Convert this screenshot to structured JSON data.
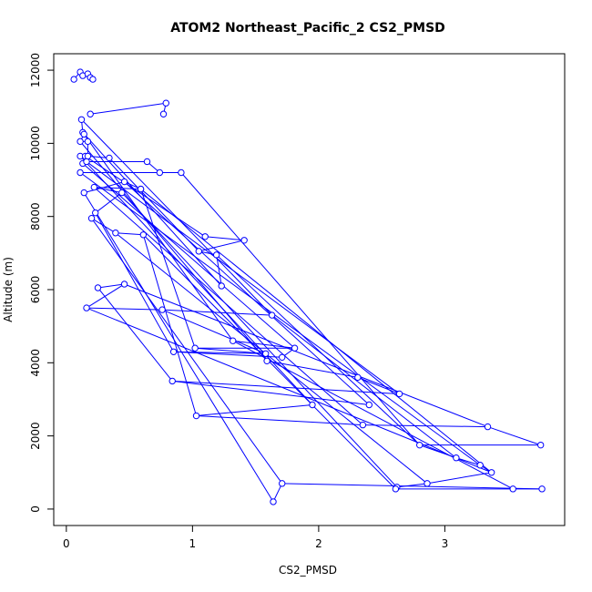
{
  "chart_data": {
    "type": "scatter",
    "title": "ATOM2 Northeast_Pacific_2 CS2_PMSD",
    "xlabel": "CS2_PMSD",
    "ylabel": "Altitude (m)",
    "xlim": [
      -0.1,
      3.95
    ],
    "ylim": [
      -450,
      12450
    ],
    "xticks": [
      0,
      1,
      2,
      3
    ],
    "yticks": [
      0,
      2000,
      4000,
      6000,
      8000,
      10000,
      12000
    ],
    "grid": false,
    "legend": "none",
    "series_color": "#0000ff",
    "mode": "lines+markers",
    "points": [
      [
        0.06,
        11750
      ],
      [
        0.11,
        11950
      ],
      [
        0.13,
        11850
      ],
      [
        0.17,
        11900
      ],
      [
        0.19,
        11800
      ],
      [
        0.21,
        11750
      ],
      [
        0.19,
        10800
      ],
      [
        0.79,
        11100
      ],
      [
        0.77,
        10800
      ],
      [
        0.12,
        10650
      ],
      [
        0.13,
        10300
      ],
      [
        0.14,
        10250
      ],
      [
        0.11,
        10050
      ],
      [
        0.17,
        10050
      ],
      [
        0.11,
        9650
      ],
      [
        0.15,
        9650
      ],
      [
        0.17,
        9650
      ],
      [
        0.34,
        9600
      ],
      [
        0.13,
        9450
      ],
      [
        0.16,
        9500
      ],
      [
        0.64,
        9500
      ],
      [
        0.74,
        9200
      ],
      [
        0.91,
        9200
      ],
      [
        0.11,
        9200
      ],
      [
        0.14,
        8650
      ],
      [
        0.46,
        8950
      ],
      [
        0.59,
        8750
      ],
      [
        0.59,
        8750
      ],
      [
        0.22,
        8800
      ],
      [
        0.44,
        8650
      ],
      [
        0.23,
        8100
      ],
      [
        0.2,
        7950
      ],
      [
        0.39,
        7550
      ],
      [
        0.61,
        7500
      ],
      [
        1.1,
        7450
      ],
      [
        1.41,
        7350
      ],
      [
        1.05,
        7050
      ],
      [
        1.19,
        6950
      ],
      [
        1.23,
        6100
      ],
      [
        0.25,
        6050
      ],
      [
        0.46,
        6150
      ],
      [
        0.16,
        5500
      ],
      [
        0.76,
        5450
      ],
      [
        1.63,
        5300
      ],
      [
        1.32,
        4600
      ],
      [
        1.81,
        4400
      ],
      [
        1.02,
        4400
      ],
      [
        1.58,
        4250
      ],
      [
        0.85,
        4300
      ],
      [
        1.71,
        4150
      ],
      [
        1.59,
        4050
      ],
      [
        2.31,
        3600
      ],
      [
        2.64,
        3150
      ],
      [
        0.84,
        3500
      ],
      [
        2.4,
        2850
      ],
      [
        1.95,
        2850
      ],
      [
        1.03,
        2550
      ],
      [
        2.35,
        2300
      ],
      [
        3.34,
        2250
      ],
      [
        3.76,
        1750
      ],
      [
        2.8,
        1750
      ],
      [
        3.09,
        1400
      ],
      [
        3.28,
        1200
      ],
      [
        3.37,
        1000
      ],
      [
        2.86,
        700
      ],
      [
        2.62,
        600
      ],
      [
        2.61,
        550
      ],
      [
        3.54,
        550
      ],
      [
        3.77,
        550
      ],
      [
        1.71,
        700
      ],
      [
        1.64,
        200
      ]
    ],
    "segments": [
      [
        0,
        1
      ],
      [
        1,
        2
      ],
      [
        2,
        3
      ],
      [
        3,
        4
      ],
      [
        4,
        5
      ],
      [
        6,
        7
      ],
      [
        7,
        8
      ],
      [
        9,
        10
      ],
      [
        10,
        11
      ],
      [
        11,
        12
      ],
      [
        12,
        13
      ],
      [
        14,
        15
      ],
      [
        15,
        16
      ],
      [
        16,
        17
      ],
      [
        13,
        16
      ],
      [
        18,
        19
      ],
      [
        19,
        20
      ],
      [
        20,
        21
      ],
      [
        21,
        22
      ],
      [
        22,
        23
      ],
      [
        24,
        25
      ],
      [
        25,
        26
      ],
      [
        26,
        27
      ],
      [
        27,
        28
      ],
      [
        28,
        29
      ],
      [
        29,
        30
      ],
      [
        30,
        31
      ],
      [
        31,
        32
      ],
      [
        32,
        33
      ],
      [
        34,
        35
      ],
      [
        35,
        36
      ],
      [
        36,
        37
      ],
      [
        37,
        38
      ],
      [
        39,
        40
      ],
      [
        40,
        41
      ],
      [
        41,
        42
      ],
      [
        42,
        43
      ],
      [
        44,
        45
      ],
      [
        45,
        46
      ],
      [
        46,
        47
      ],
      [
        47,
        48
      ],
      [
        48,
        49
      ],
      [
        50,
        51
      ],
      [
        51,
        52
      ],
      [
        52,
        53
      ],
      [
        53,
        54
      ],
      [
        55,
        56
      ],
      [
        56,
        57
      ],
      [
        57,
        58
      ],
      [
        58,
        59
      ],
      [
        59,
        60
      ],
      [
        60,
        61
      ],
      [
        61,
        62
      ],
      [
        62,
        63
      ],
      [
        63,
        64
      ],
      [
        64,
        65
      ],
      [
        66,
        67
      ],
      [
        67,
        68
      ],
      [
        68,
        69
      ],
      [
        69,
        70
      ],
      [
        10,
        38
      ],
      [
        11,
        44
      ],
      [
        12,
        50
      ],
      [
        14,
        55
      ],
      [
        15,
        34
      ],
      [
        17,
        36
      ],
      [
        23,
        62
      ],
      [
        24,
        70
      ],
      [
        25,
        54
      ],
      [
        26,
        63
      ],
      [
        27,
        46
      ],
      [
        28,
        57
      ],
      [
        29,
        65
      ],
      [
        30,
        48
      ],
      [
        31,
        69
      ],
      [
        32,
        64
      ],
      [
        33,
        56
      ],
      [
        43,
        61
      ],
      [
        33,
        66
      ],
      [
        37,
        60
      ],
      [
        39,
        53
      ],
      [
        40,
        58
      ],
      [
        41,
        63
      ],
      [
        42,
        47
      ],
      [
        19,
        52
      ],
      [
        18,
        45
      ],
      [
        22,
        60
      ],
      [
        44,
        67
      ],
      [
        9,
        43
      ],
      [
        45,
        49
      ]
    ]
  }
}
